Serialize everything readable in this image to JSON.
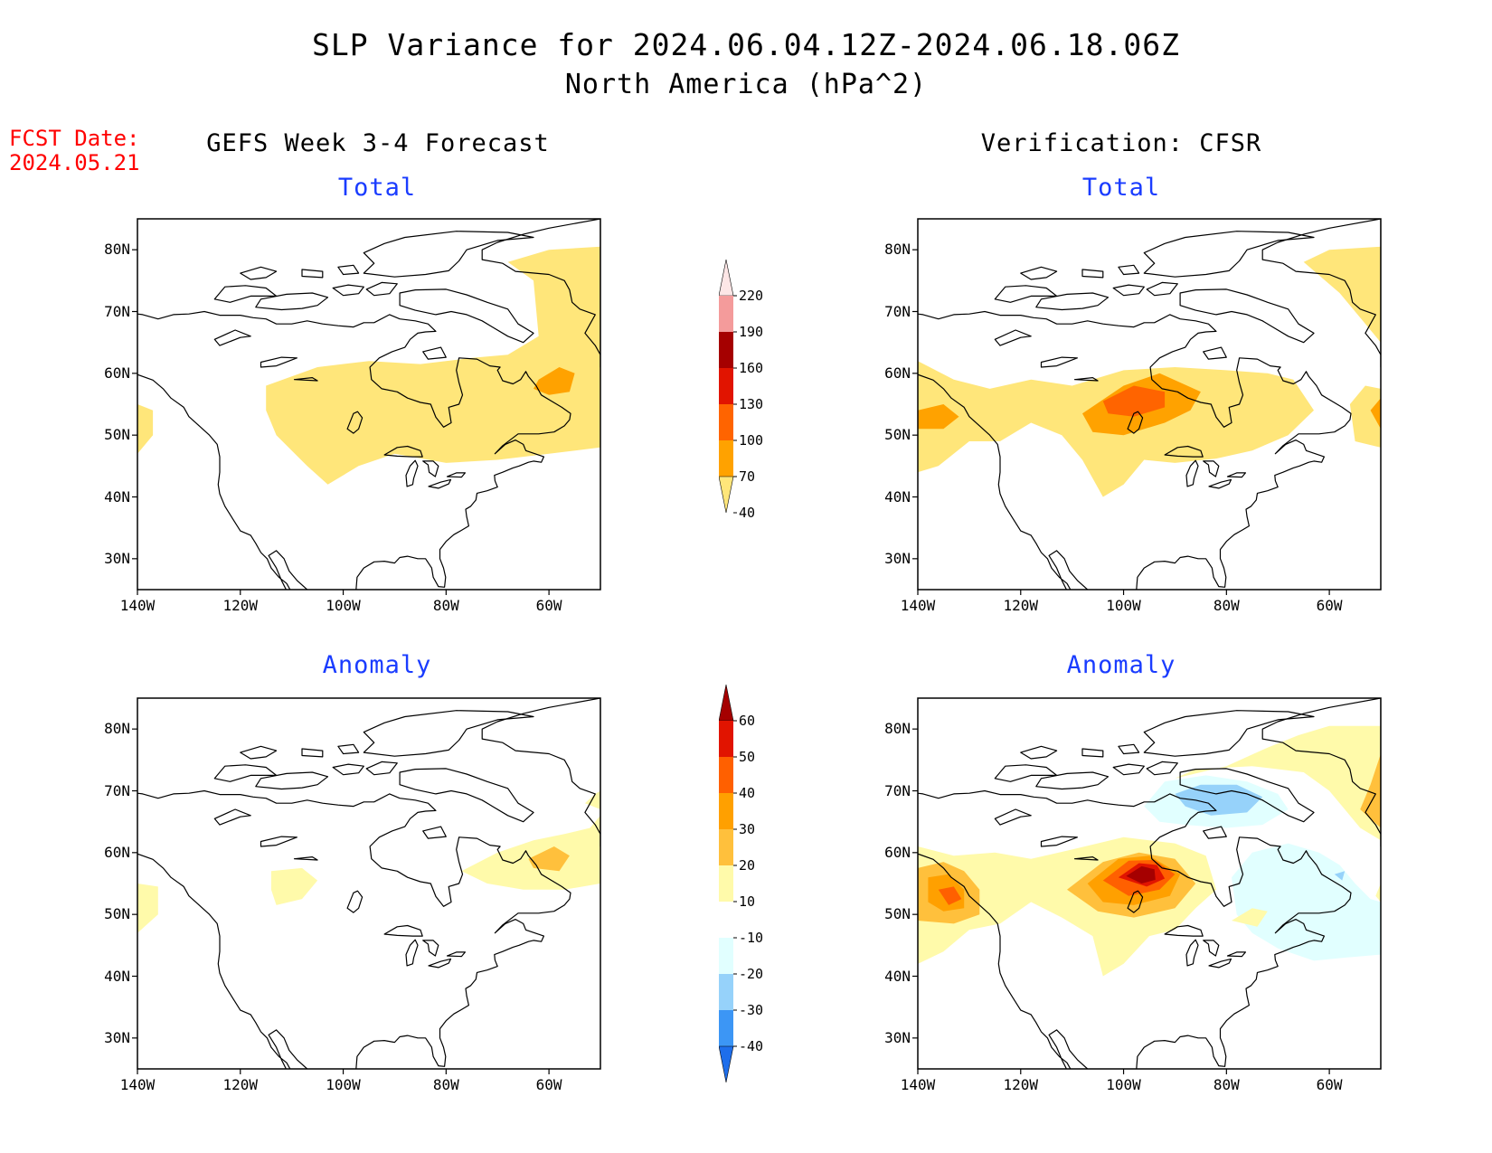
{
  "figure": {
    "title_line1": "SLP Variance for 2024.06.04.12Z-2024.06.18.06Z",
    "title_line2": "North America (hPa^2)",
    "fcst_label": "FCST Date:",
    "fcst_date": "2024.05.21",
    "left_column": "GEFS Week 3-4 Forecast",
    "right_column": "Verification: CFSR",
    "panel_total": "Total",
    "panel_anomaly": "Anomaly"
  },
  "axes": {
    "lat_labels": [
      "80N",
      "70N",
      "60N",
      "50N",
      "40N",
      "30N"
    ],
    "lon_labels": [
      "140W",
      "120W",
      "100W",
      "80W",
      "60W"
    ]
  },
  "colorbars": {
    "total": {
      "levels": [
        "40",
        "70",
        "100",
        "130",
        "160",
        "190",
        "220"
      ],
      "colors": [
        "#ffe67a",
        "#ffa200",
        "#ff6400",
        "#e11400",
        "#a50000",
        "#f49b9b",
        "#fde6e6"
      ]
    },
    "anomaly": {
      "levels": [
        "-40",
        "-30",
        "-20",
        "-10",
        "10",
        "20",
        "30",
        "40",
        "50",
        "60"
      ],
      "colors": [
        "#1e6eeb",
        "#3c96f5",
        "#96d2fa",
        "#e1ffff",
        "#ffffff",
        "#fffaaa",
        "#ffc03c",
        "#ffa000",
        "#ff6000",
        "#e11400",
        "#a50000"
      ]
    }
  },
  "map_fields": {
    "note_levels_total_hPa2": "fill shading from colorbar",
    "gefs_total": [
      {
        "level": "40-70",
        "region": "Canada broad band 45N-65N, 110W-50W"
      },
      {
        "level": "40-70",
        "region": "Greenland / Labrador Sea"
      },
      {
        "level": "40-70",
        "region": "Pacific coast near 140W 50N-58N"
      },
      {
        "level": "70-100",
        "region": "Labrador 55N-60N, 58W"
      }
    ],
    "cfsr_total": [
      {
        "level": "40-70",
        "region": "Canada band 45N-64N, 140W-50W"
      },
      {
        "level": "70-100",
        "region": "Central Canada around 55N 100W"
      },
      {
        "level": "100-130",
        "region": "Central Canada core near 56N 96W"
      },
      {
        "level": "70-100",
        "region": "Pacific coast near 135W 52N"
      }
    ],
    "gefs_anomaly": [
      {
        "level": "10-20",
        "region": "Hudson Bay east / Labrador 55N-63N"
      },
      {
        "level": "20-30",
        "region": "Labrador near 60N 58W"
      },
      {
        "level": "10-20",
        "region": "Pacific coast near 140W 52N"
      },
      {
        "level": "10-20",
        "region": "Western Canada near 56N 110W"
      }
    ],
    "cfsr_anomaly": [
      {
        "level": "50-60+",
        "region": "Central Canada core near 56N 96W"
      },
      {
        "level": "30-40",
        "region": "Pacific coast near 133W 53N"
      },
      {
        "level": "-10 to -30",
        "region": "Canadian Arctic near 68N 85W"
      },
      {
        "level": "-10 to -20",
        "region": "Eastern Canada / Atlantic 45N-58N"
      },
      {
        "level": "20-30",
        "region": "Greenland east near 70N 55W"
      }
    ]
  }
}
